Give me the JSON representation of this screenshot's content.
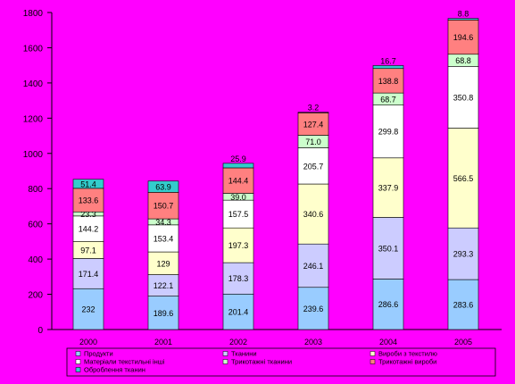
{
  "chart_data": {
    "type": "bar",
    "stacked": true,
    "title": "",
    "xlabel": "",
    "ylabel": "",
    "ylim": [
      0,
      1800
    ],
    "yticks": [
      0,
      200,
      400,
      600,
      800,
      1000,
      1200,
      1400,
      1600,
      1800
    ],
    "grid": false,
    "legend_position": "bottom",
    "categories": [
      "2000",
      "2001",
      "2002",
      "2003",
      "2004",
      "2005"
    ],
    "series": [
      {
        "name": "Продукти",
        "color": "#99CCFF",
        "values": [
          232,
          189.6,
          201.4,
          239.6,
          286.6,
          283.6
        ],
        "labels": [
          "232",
          "189.6",
          "201.4",
          "239.6",
          "286.6",
          "283.6"
        ]
      },
      {
        "name": "Тканини",
        "color": "#CCCCFF",
        "values": [
          171.4,
          122.1,
          178.3,
          246.1,
          350.1,
          293.3
        ],
        "labels": [
          "171.4",
          "122.1",
          "178.3",
          "246.1",
          "350.1",
          "293.3"
        ]
      },
      {
        "name": "Вироби з текстилю",
        "color": "#FFFFCC",
        "values": [
          97.1,
          129,
          197.3,
          340.6,
          337.9,
          566.5
        ],
        "labels": [
          "97.1",
          "129",
          "197.3",
          "340.6",
          "337.9",
          "566.5"
        ]
      },
      {
        "name": "Матеріали текстильні інші",
        "color": "#FFFFFF",
        "values": [
          144.2,
          153.4,
          157.5,
          205.7,
          299.8,
          350.8
        ],
        "labels": [
          "144.2",
          "153.4",
          "157.5",
          "205.7",
          "299.8",
          "350.8"
        ]
      },
      {
        "name": "Трикотажні тканини",
        "color": "#CCFFCC",
        "values": [
          23.3,
          34.3,
          39.0,
          71.0,
          68.7,
          68.8
        ],
        "labels": [
          "23.3",
          "34.3",
          "39.0",
          "71.0",
          "68.7",
          "68.8"
        ]
      },
      {
        "name": "Трикотажні вироби",
        "color": "#FF8080",
        "values": [
          133.6,
          150.7,
          144.4,
          127.4,
          138.8,
          194.6
        ],
        "labels": [
          "133.6",
          "150.7",
          "144.4",
          "127.4",
          "138.8",
          "194.6"
        ]
      },
      {
        "name": "Оброблення тканин",
        "color": "#33CCCC",
        "values": [
          51.4,
          63.9,
          25.9,
          3.2,
          16.7,
          8.8
        ],
        "labels": [
          "51.4",
          "63.9",
          "25.9",
          "3.2",
          "16.7",
          "8.8"
        ]
      }
    ]
  }
}
